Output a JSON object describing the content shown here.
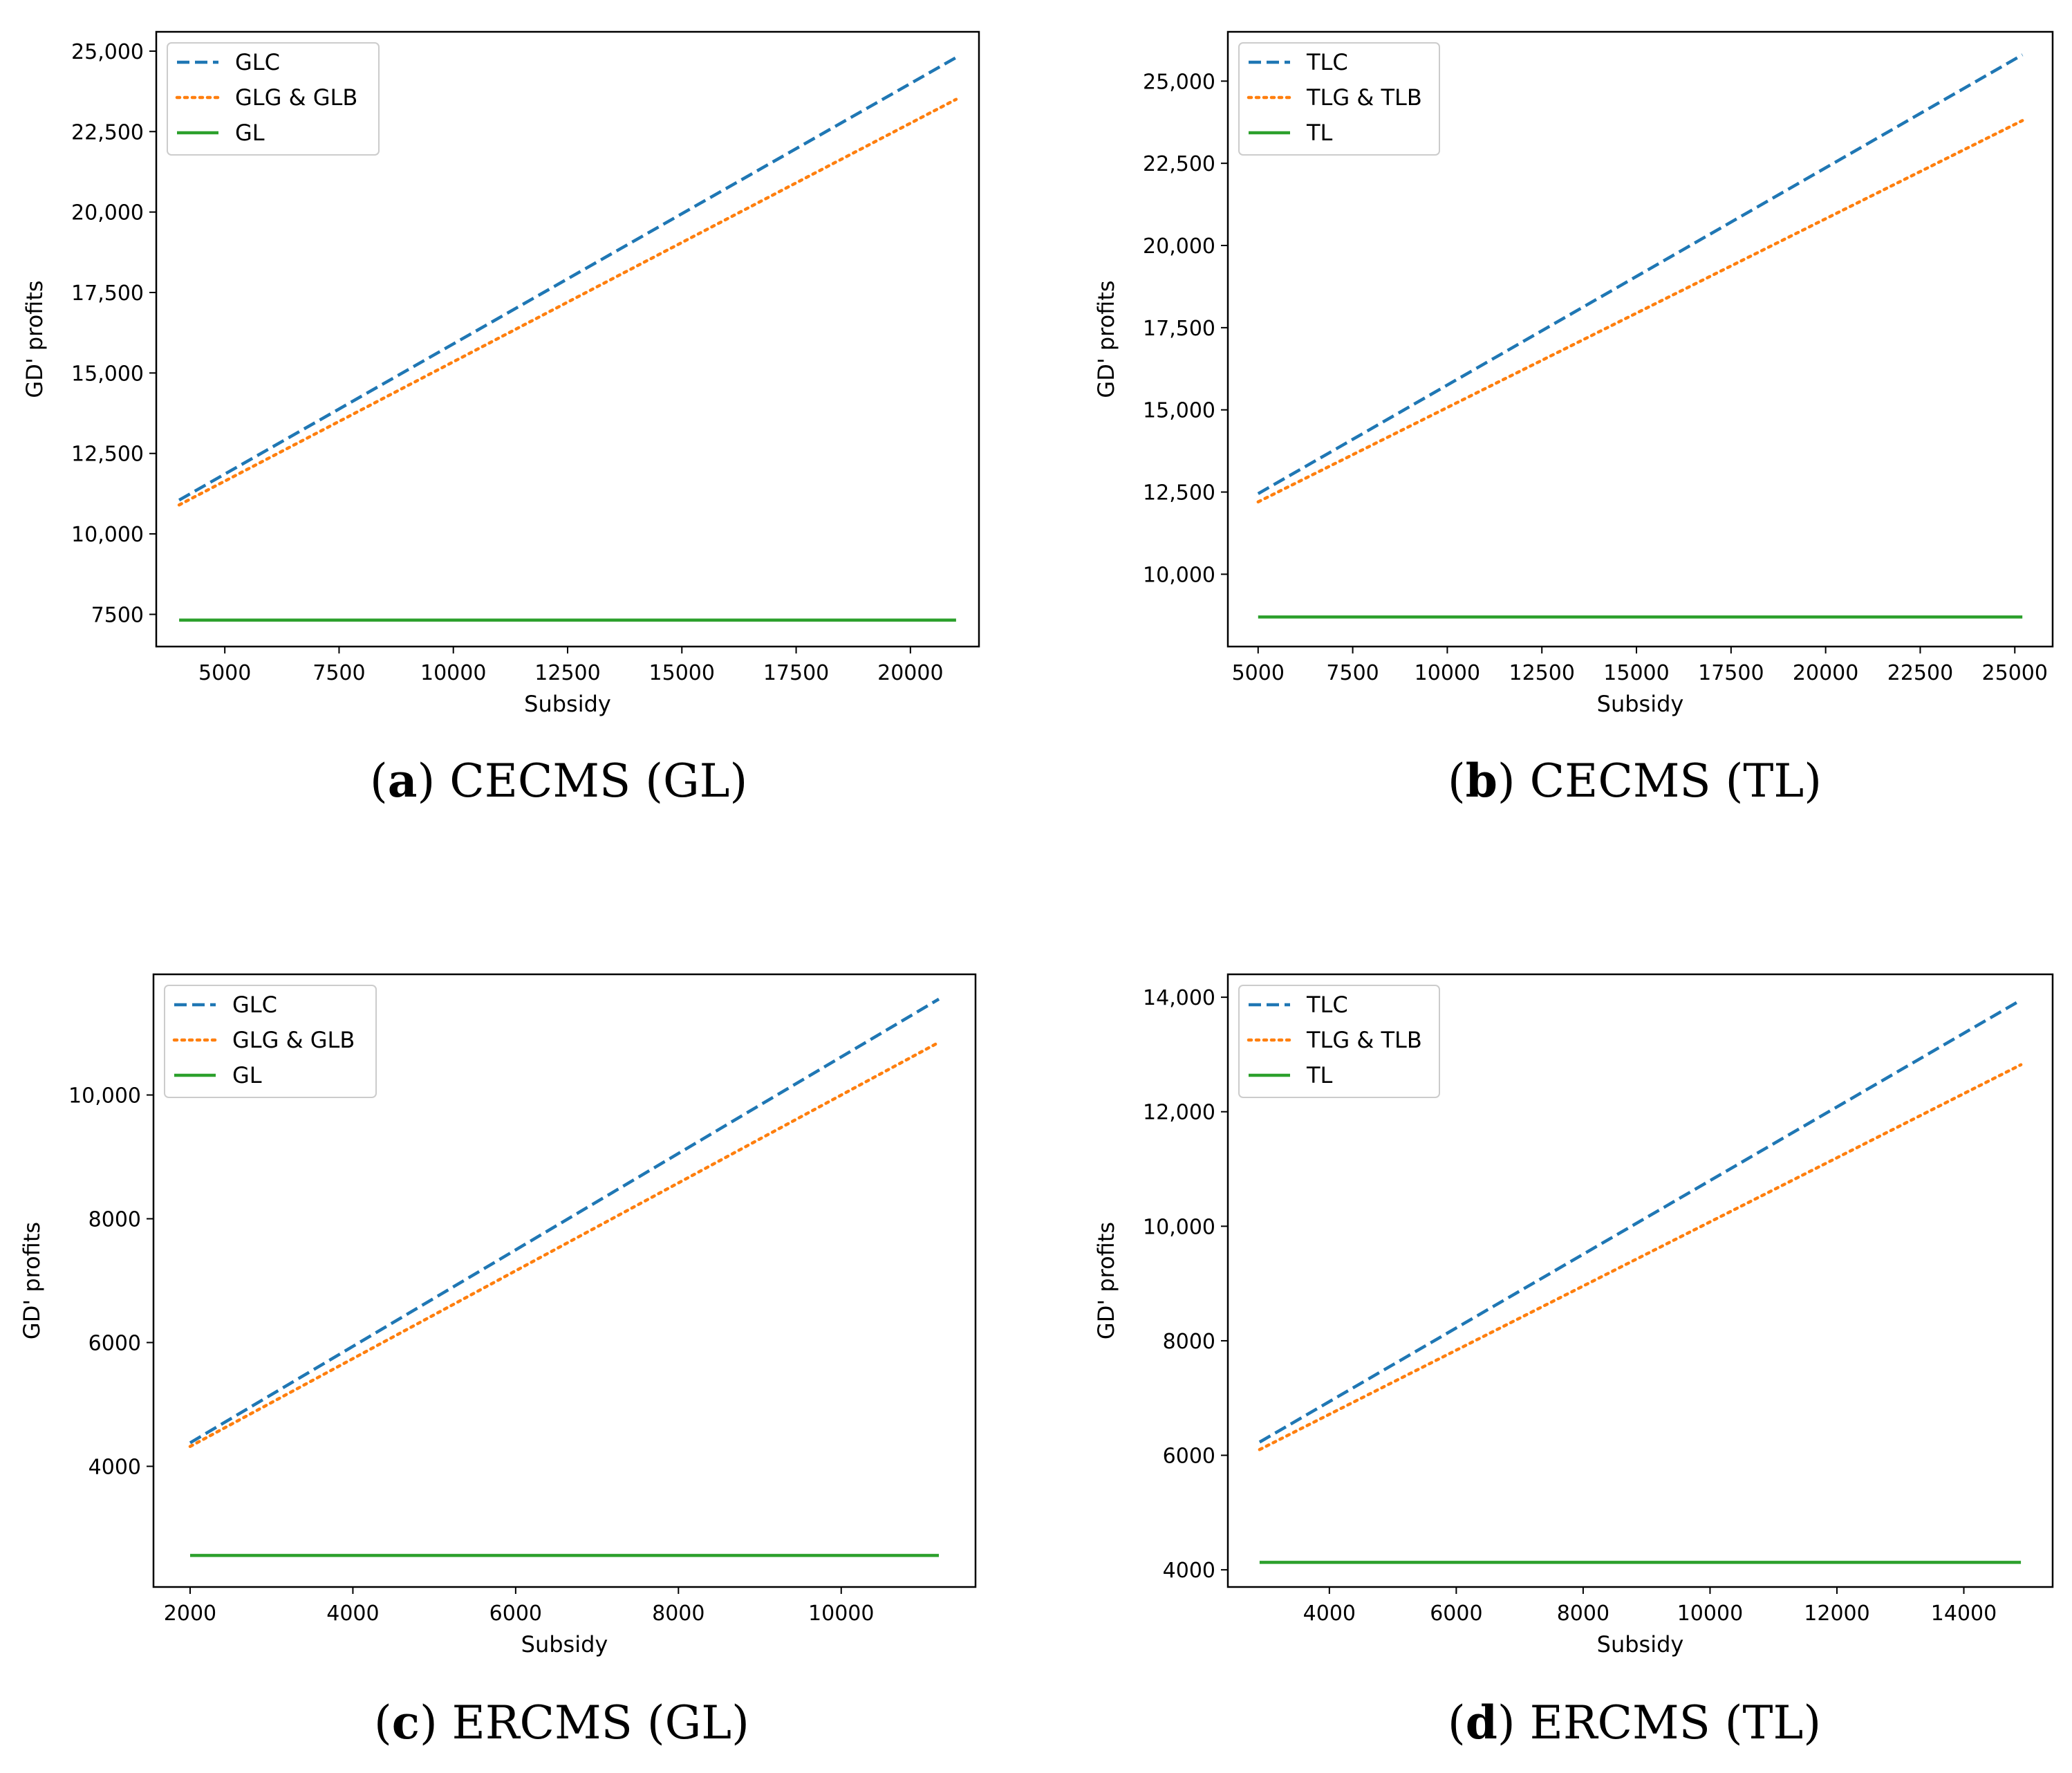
{
  "colors": {
    "blue": "#1f77b4",
    "orange": "#ff7f0e",
    "green": "#2ca02c"
  },
  "chart_data": [
    {
      "type": "line",
      "caption_letter": "a",
      "caption_title": "CECMS (GL)",
      "xlabel": "Subsidy",
      "ylabel": "GD' profits",
      "xlim": [
        3500,
        21500
      ],
      "ylim": [
        6500,
        25600
      ],
      "xticks": [
        5000,
        7500,
        10000,
        12500,
        15000,
        17500,
        20000
      ],
      "xtick_labels": [
        "5000",
        "7500",
        "10000",
        "12500",
        "15000",
        "17500",
        "20000"
      ],
      "yticks": [
        7500,
        10000,
        12500,
        15000,
        17500,
        20000,
        22500,
        25000
      ],
      "ytick_labels": [
        "7500",
        "10,000",
        "12,500",
        "15,000",
        "17,500",
        "20,000",
        "22,500",
        "25,000"
      ],
      "legend_position": "upper-left",
      "series": [
        {
          "name": "GLC",
          "style": "dashed",
          "color": "#1f77b4",
          "x": [
            4000,
            21000
          ],
          "y": [
            11050,
            24800
          ]
        },
        {
          "name": "GLG & GLB",
          "style": "dotted",
          "color": "#ff7f0e",
          "x": [
            4000,
            21000
          ],
          "y": [
            10900,
            23500
          ]
        },
        {
          "name": "GL",
          "style": "solid",
          "color": "#2ca02c",
          "x": [
            4000,
            21000
          ],
          "y": [
            7320,
            7320
          ]
        }
      ]
    },
    {
      "type": "line",
      "caption_letter": "b",
      "caption_title": "CECMS (TL)",
      "xlabel": "Subsidy",
      "ylabel": "GD' profits",
      "xlim": [
        4200,
        26000
      ],
      "ylim": [
        7800,
        26500
      ],
      "xticks": [
        5000,
        7500,
        10000,
        12500,
        15000,
        17500,
        20000,
        22500,
        25000
      ],
      "xtick_labels": [
        "5000",
        "7500",
        "10000",
        "12500",
        "15000",
        "17500",
        "20000",
        "22500",
        "25000"
      ],
      "yticks": [
        10000,
        12500,
        15000,
        17500,
        20000,
        22500,
        25000
      ],
      "ytick_labels": [
        "10,000",
        "12,500",
        "15,000",
        "17,500",
        "20,000",
        "22,500",
        "25,000"
      ],
      "legend_position": "upper-left",
      "series": [
        {
          "name": "TLC",
          "style": "dashed",
          "color": "#1f77b4",
          "x": [
            5000,
            25200
          ],
          "y": [
            12450,
            25800
          ]
        },
        {
          "name": "TLG & TLB",
          "style": "dotted",
          "color": "#ff7f0e",
          "x": [
            5000,
            25200
          ],
          "y": [
            12200,
            23800
          ]
        },
        {
          "name": "TL",
          "style": "solid",
          "color": "#2ca02c",
          "x": [
            5000,
            25200
          ],
          "y": [
            8700,
            8700
          ]
        }
      ]
    },
    {
      "type": "line",
      "caption_letter": "c",
      "caption_title": "ERCMS (GL)",
      "xlabel": "Subsidy",
      "ylabel": "GD' profits",
      "xlim": [
        1550,
        11650
      ],
      "ylim": [
        2050,
        11950
      ],
      "xticks": [
        2000,
        4000,
        6000,
        8000,
        10000
      ],
      "xtick_labels": [
        "2000",
        "4000",
        "6000",
        "8000",
        "10000"
      ],
      "yticks": [
        4000,
        6000,
        8000,
        10000
      ],
      "ytick_labels": [
        "4000",
        "6000",
        "8000",
        "10,000"
      ],
      "legend_position": "upper-left",
      "series": [
        {
          "name": "GLC",
          "style": "dashed",
          "color": "#1f77b4",
          "x": [
            2000,
            11200
          ],
          "y": [
            4380,
            11550
          ]
        },
        {
          "name": "GLG & GLB",
          "style": "dotted",
          "color": "#ff7f0e",
          "x": [
            2000,
            11200
          ],
          "y": [
            4320,
            10850
          ]
        },
        {
          "name": "GL",
          "style": "solid",
          "color": "#2ca02c",
          "x": [
            2000,
            11200
          ],
          "y": [
            2560,
            2560
          ]
        }
      ]
    },
    {
      "type": "line",
      "caption_letter": "d",
      "caption_title": "ERCMS (TL)",
      "xlabel": "Subsidy",
      "ylabel": "GD' profits",
      "xlim": [
        2400,
        15400
      ],
      "ylim": [
        3700,
        14400
      ],
      "xticks": [
        4000,
        6000,
        8000,
        10000,
        12000,
        14000
      ],
      "xtick_labels": [
        "4000",
        "6000",
        "8000",
        "10000",
        "12000",
        "14000"
      ],
      "yticks": [
        4000,
        6000,
        8000,
        10000,
        12000,
        14000
      ],
      "ytick_labels": [
        "4000",
        "6000",
        "8000",
        "10,000",
        "12,000",
        "14,000"
      ],
      "legend_position": "upper-left",
      "series": [
        {
          "name": "TLC",
          "style": "dashed",
          "color": "#1f77b4",
          "x": [
            2900,
            14900
          ],
          "y": [
            6230,
            13950
          ]
        },
        {
          "name": "TLG & TLB",
          "style": "dotted",
          "color": "#ff7f0e",
          "x": [
            2900,
            14900
          ],
          "y": [
            6100,
            12820
          ]
        },
        {
          "name": "TL",
          "style": "solid",
          "color": "#2ca02c",
          "x": [
            2900,
            14900
          ],
          "y": [
            4130,
            4130
          ]
        }
      ]
    }
  ]
}
